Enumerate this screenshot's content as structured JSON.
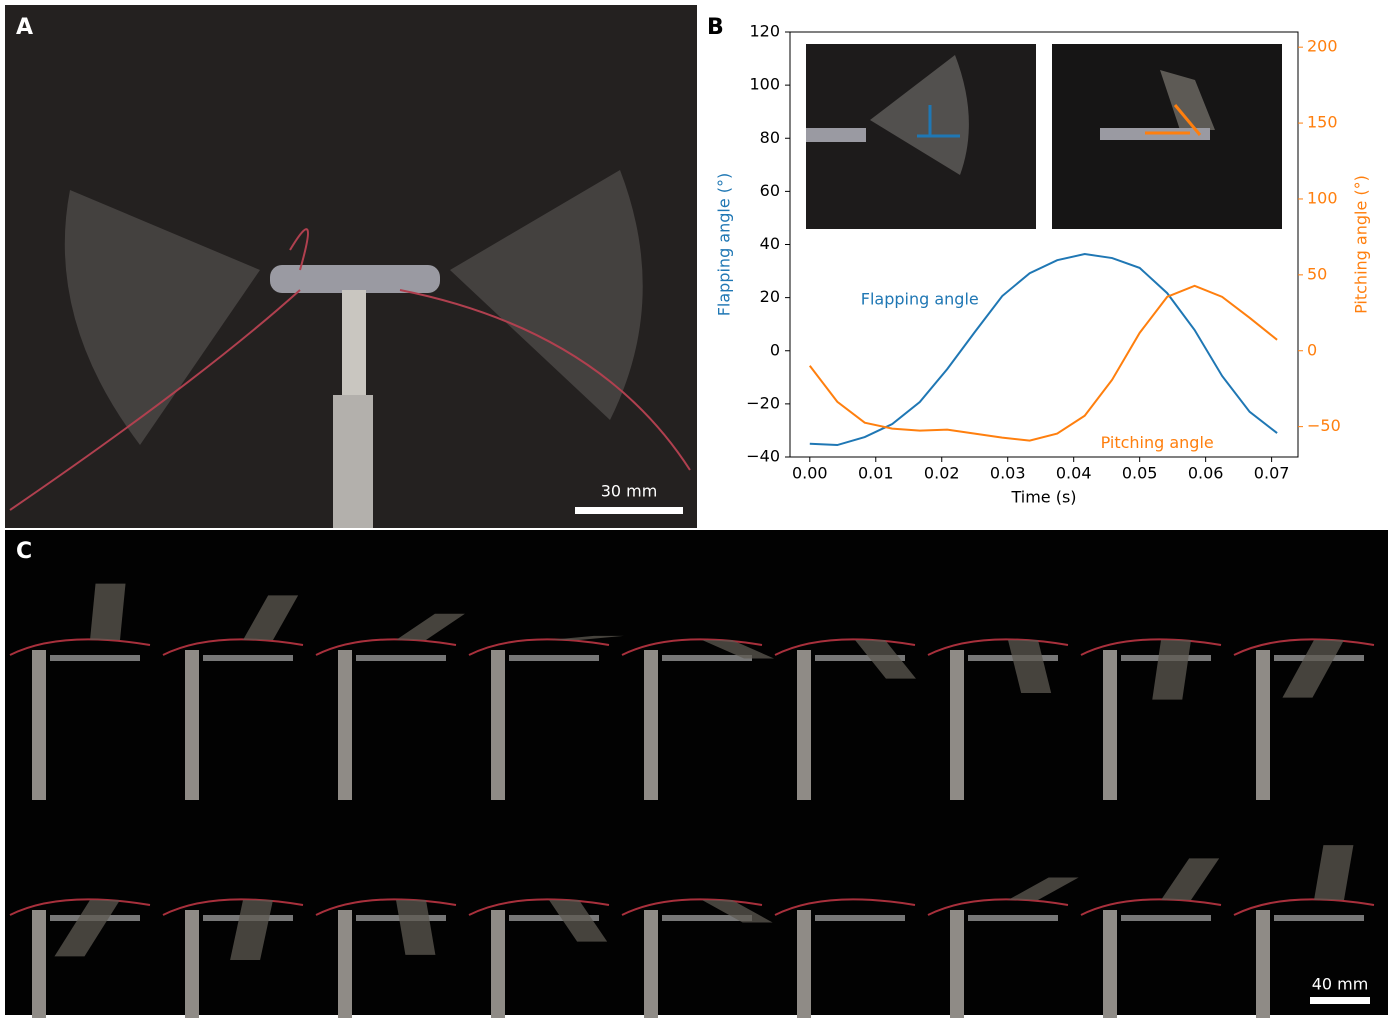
{
  "panels": [
    {
      "label": "A",
      "scale_bar": "30 mm"
    },
    {
      "label": "B"
    },
    {
      "label": "C",
      "scale_bar": "40 mm"
    }
  ],
  "chart_data": {
    "type": "line",
    "x_label": "Time (s)",
    "y_label": "Flapping angle (°)",
    "y2_label": "Pitching angle (°)",
    "x": [
      0,
      0.00417,
      0.00833,
      0.0125,
      0.01667,
      0.02083,
      0.025,
      0.02917,
      0.03333,
      0.0375,
      0.04167,
      0.04583,
      0.05,
      0.05417,
      0.05833,
      0.0625,
      0.06667,
      0.07083
    ],
    "series": [
      {
        "name": "Flapping angle",
        "color": "#1f77b4",
        "values": [
          -35,
          -35.5,
          -32.5,
          -27.6,
          -19.3,
          -6.9,
          7,
          20.6,
          29.2,
          34.1,
          36.4,
          34.9,
          31.2,
          21.7,
          7.8,
          -9.5,
          -23,
          -31
        ]
      },
      {
        "name": "Pitching angle",
        "color": "#ff7f0e",
        "axis": "y2",
        "values": [
          -9.9,
          -33.6,
          -47.4,
          -51.3,
          -52.6,
          -52,
          -54.6,
          -57.2,
          -59.2,
          -54.6,
          -42.8,
          -19.1,
          11.8,
          35.5,
          42.8,
          35.5,
          21.7,
          7.2
        ]
      }
    ],
    "xlim": [
      -0.003,
      0.074
    ],
    "xticks": [
      {
        "value": 0,
        "label": "0.00"
      },
      {
        "value": 0.01,
        "label": "0.01"
      },
      {
        "value": 0.02,
        "label": "0.02"
      },
      {
        "value": 0.03,
        "label": "0.03"
      },
      {
        "value": 0.04,
        "label": "0.04"
      },
      {
        "value": 0.05,
        "label": "0.05"
      },
      {
        "value": 0.06,
        "label": "0.06"
      },
      {
        "value": 0.07,
        "label": "0.07"
      }
    ],
    "ylim": [
      -40,
      120
    ],
    "yticks": [
      {
        "value": -40,
        "label": "−40"
      },
      {
        "value": -20,
        "label": "−20"
      },
      0,
      20,
      40,
      60,
      80,
      100,
      120
    ],
    "y2lim": [
      -70,
      210
    ],
    "y2ticks": [
      {
        "value": -50,
        "label": "−50"
      },
      0,
      50,
      100,
      150,
      200
    ]
  }
}
